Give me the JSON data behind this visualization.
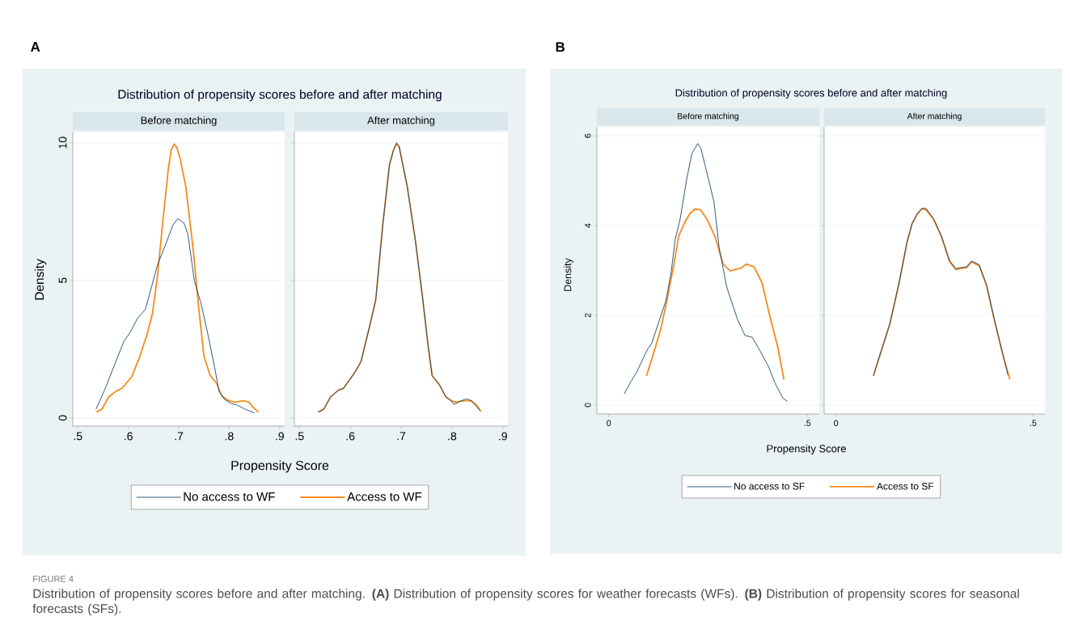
{
  "chart_data": [
    {
      "type": "line",
      "title": "Distribution of propensity scores before and after matching",
      "subtitle": "Before matching",
      "xlabel": "Propensity Score",
      "ylabel": "Density",
      "xlim": [
        0.49,
        0.91
      ],
      "ylim": [
        -0.3,
        10.4
      ],
      "xticks": [
        {
          "value": 0.5,
          "label": ".5"
        },
        {
          "value": 0.6,
          "label": ".6"
        },
        {
          "value": 0.7,
          "label": ".7"
        },
        {
          "value": 0.8,
          "label": ".8"
        },
        {
          "value": 0.9,
          "label": ".9"
        }
      ],
      "yticks": [
        0,
        5,
        10
      ],
      "grid": "y",
      "legend": "bottom",
      "annotations": [
        "A",
        "FIGURE 4",
        "Distribution of propensity scores before and after matching. **(A)** Distribution of propensity scores for weather forecasts (WFs). **(B)** Distribution of propensity scores for seasonal forecasts (SFs)."
      ],
      "series": [
        {
          "name": "No access to WF",
          "color": "#1a476f",
          "x": [
            0.536,
            0.553,
            0.569,
            0.591,
            0.604,
            0.618,
            0.634,
            0.642,
            0.658,
            0.675,
            0.688,
            0.698,
            0.71,
            0.718,
            0.731,
            0.745,
            0.758,
            0.772,
            0.78,
            0.791,
            0.804,
            0.815,
            0.831,
            0.85
          ],
          "values": [
            0.32,
            1.01,
            1.75,
            2.77,
            3.12,
            3.61,
            3.95,
            4.49,
            5.57,
            6.35,
            6.99,
            7.24,
            7.09,
            6.7,
            4.98,
            4.1,
            3.02,
            1.75,
            0.96,
            0.67,
            0.52,
            0.47,
            0.32,
            0.18
          ]
        },
        {
          "name": "Access to WF",
          "color": "#f58a1f",
          "x": [
            0.537,
            0.548,
            0.561,
            0.575,
            0.588,
            0.607,
            0.623,
            0.637,
            0.648,
            0.658,
            0.669,
            0.679,
            0.685,
            0.691,
            0.696,
            0.702,
            0.714,
            0.729,
            0.739,
            0.75,
            0.762,
            0.775,
            0.785,
            0.796,
            0.81,
            0.829,
            0.839,
            0.848,
            0.858
          ],
          "values": [
            0.21,
            0.32,
            0.76,
            0.96,
            1.08,
            1.5,
            2.24,
            3.02,
            3.8,
            5.18,
            7.24,
            9.0,
            9.74,
            9.96,
            9.83,
            9.49,
            8.41,
            6.06,
            4.1,
            2.24,
            1.55,
            1.25,
            0.81,
            0.65,
            0.57,
            0.62,
            0.57,
            0.37,
            0.21
          ]
        }
      ]
    },
    {
      "type": "line",
      "subtitle": "After matching",
      "tick_labels": "x",
      "xlim": [
        0.49,
        0.91
      ],
      "ylim": [
        -0.3,
        10.4
      ],
      "xticks": [
        {
          "value": 0.5,
          "label": ".5"
        },
        {
          "value": 0.6,
          "label": ".6"
        },
        {
          "value": 0.7,
          "label": ".7"
        },
        {
          "value": 0.8,
          "label": ".8"
        },
        {
          "value": 0.9,
          "label": ".9"
        }
      ],
      "yticks": [
        0,
        5,
        10
      ],
      "grid": "y",
      "series": [
        {
          "color": "#1a476f",
          "x": [
            0.537,
            0.548,
            0.561,
            0.577,
            0.586,
            0.607,
            0.621,
            0.639,
            0.65,
            0.664,
            0.677,
            0.685,
            0.691,
            0.696,
            0.712,
            0.728,
            0.742,
            0.753,
            0.761,
            0.775,
            0.788,
            0.799,
            0.804,
            0.818,
            0.829,
            0.839,
            0.85,
            0.855
          ],
          "values": [
            0.21,
            0.32,
            0.76,
            1.01,
            1.06,
            1.6,
            2.04,
            3.41,
            4.29,
            7.04,
            9.2,
            9.74,
            10.0,
            9.88,
            8.41,
            6.45,
            4.39,
            2.63,
            1.53,
            1.21,
            0.76,
            0.62,
            0.49,
            0.62,
            0.69,
            0.62,
            0.37,
            0.27
          ]
        },
        {
          "color": "#f58a1f",
          "x": [
            0.537,
            0.548,
            0.561,
            0.577,
            0.586,
            0.607,
            0.621,
            0.639,
            0.65,
            0.664,
            0.677,
            0.685,
            0.691,
            0.696,
            0.712,
            0.728,
            0.742,
            0.753,
            0.761,
            0.775,
            0.788,
            0.799,
            0.807,
            0.823,
            0.837,
            0.848,
            0.857
          ],
          "values": [
            0.21,
            0.32,
            0.76,
            1.01,
            1.06,
            1.6,
            2.04,
            3.41,
            4.29,
            7.04,
            9.2,
            9.74,
            9.96,
            9.85,
            8.41,
            6.45,
            4.39,
            2.63,
            1.53,
            1.21,
            0.76,
            0.62,
            0.57,
            0.62,
            0.62,
            0.47,
            0.23
          ]
        }
      ]
    },
    {
      "type": "line",
      "title": "Distribution of propensity scores before and after matching",
      "subtitle": "Before matching",
      "xlabel": "Propensity Score",
      "ylabel": "Density",
      "xlim": [
        -0.03,
        0.53
      ],
      "ylim": [
        -0.2,
        6.2
      ],
      "xticks": [
        0,
        {
          "value": 0.5,
          "label": ".5"
        }
      ],
      "yticks": [
        0,
        2,
        4,
        6
      ],
      "grid": "y",
      "legend": "bottom",
      "annotations": [
        "B"
      ],
      "series": [
        {
          "name": "No access to SF",
          "color": "#1a476f",
          "x": [
            0.039,
            0.056,
            0.069,
            0.085,
            0.098,
            0.108,
            0.127,
            0.144,
            0.157,
            0.167,
            0.18,
            0.196,
            0.209,
            0.224,
            0.232,
            0.252,
            0.265,
            0.278,
            0.297,
            0.324,
            0.343,
            0.361,
            0.382,
            0.402,
            0.418,
            0.438,
            0.45
          ],
          "values": [
            0.25,
            0.53,
            0.71,
            1.01,
            1.25,
            1.37,
            1.88,
            2.33,
            2.96,
            3.68,
            4.16,
            5.03,
            5.6,
            5.83,
            5.72,
            5.0,
            4.52,
            3.5,
            2.63,
            1.91,
            1.55,
            1.51,
            1.19,
            0.86,
            0.5,
            0.16,
            0.08
          ]
        },
        {
          "name": "Access to SF",
          "color": "#f58a1f",
          "x": [
            0.095,
            0.111,
            0.131,
            0.147,
            0.164,
            0.176,
            0.193,
            0.205,
            0.217,
            0.231,
            0.248,
            0.268,
            0.288,
            0.306,
            0.317,
            0.333,
            0.346,
            0.366,
            0.386,
            0.405,
            0.425,
            0.441
          ],
          "values": [
            0.65,
            1.1,
            1.7,
            2.36,
            3.14,
            3.77,
            4.1,
            4.28,
            4.37,
            4.35,
            4.13,
            3.74,
            3.14,
            2.99,
            3.02,
            3.05,
            3.14,
            3.08,
            2.72,
            2.0,
            1.31,
            0.57
          ]
        }
      ]
    },
    {
      "type": "line",
      "subtitle": "After matching",
      "tick_labels": "x",
      "xlim": [
        -0.03,
        0.53
      ],
      "ylim": [
        -0.2,
        6.2
      ],
      "xticks": [
        0,
        {
          "value": 0.5,
          "label": ".5"
        }
      ],
      "yticks": [
        0,
        2,
        4,
        6
      ],
      "grid": "y",
      "series": [
        {
          "color": "#1a476f",
          "x": [
            0.095,
            0.111,
            0.137,
            0.16,
            0.18,
            0.193,
            0.206,
            0.218,
            0.229,
            0.248,
            0.268,
            0.288,
            0.304,
            0.32,
            0.331,
            0.344,
            0.363,
            0.382,
            0.402,
            0.422,
            0.436
          ],
          "values": [
            0.65,
            1.1,
            1.82,
            2.72,
            3.62,
            4.04,
            4.27,
            4.39,
            4.38,
            4.15,
            3.76,
            3.22,
            3.04,
            3.07,
            3.08,
            3.21,
            3.13,
            2.68,
            1.9,
            1.18,
            0.67
          ]
        },
        {
          "color": "#f58a1f",
          "x": [
            0.095,
            0.111,
            0.137,
            0.16,
            0.18,
            0.193,
            0.206,
            0.218,
            0.229,
            0.248,
            0.268,
            0.288,
            0.304,
            0.32,
            0.331,
            0.344,
            0.363,
            0.382,
            0.402,
            0.422,
            0.441
          ],
          "values": [
            0.65,
            1.1,
            1.82,
            2.72,
            3.62,
            4.04,
            4.25,
            4.37,
            4.35,
            4.13,
            3.74,
            3.2,
            3.02,
            3.05,
            3.06,
            3.19,
            3.11,
            2.66,
            1.88,
            1.16,
            0.57
          ]
        }
      ]
    }
  ]
}
